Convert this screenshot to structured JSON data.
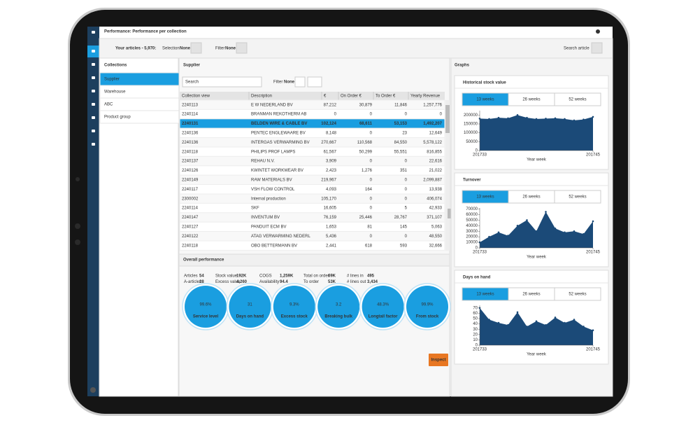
{
  "header": {
    "title": "Performance: Performance per collection"
  },
  "toolbar": {
    "articles": "Your articles - 5,970:",
    "selection_label": "Selection",
    "selection_value": "None",
    "filter_label": "Filter",
    "filter_value": "None",
    "search": "Search article"
  },
  "collections": {
    "title": "Collections",
    "items": [
      "Supplier",
      "Warehouse",
      "ABC",
      "Product group"
    ]
  },
  "supplier": {
    "title": "Supplier",
    "search": "Search",
    "filter_label": "Filter",
    "filter_value": "None",
    "columns": [
      "Collection view",
      "Description",
      "€",
      "On Order €",
      "To Order €",
      "Yearly Revenue"
    ],
    "rows": [
      [
        "2240113",
        "E W NEDERLAND BV",
        "87,212",
        "30,879",
        "11,846",
        "1,257,776"
      ],
      [
        "2240114",
        "BRANMAN REKOTHERM AB",
        "0",
        "0",
        "0",
        "0"
      ],
      [
        "2240131",
        "BELDEN WIRE & CABLE BV",
        "102,124",
        "68,611",
        "53,153",
        "1,492,207"
      ],
      [
        "2240136",
        "PENTEC ENGLEWAARE BV",
        "8,148",
        "0",
        "23",
        "12,649"
      ],
      [
        "2240136",
        "INTERGAS VERWARMING BV",
        "270,667",
        "110,568",
        "84,550",
        "5,578,122"
      ],
      [
        "2240118",
        "PHILIPS PROF LAMPS",
        "61,567",
        "50,299",
        "55,551",
        "816,855"
      ],
      [
        "2240137",
        "REHAU N.V.",
        "3,909",
        "0",
        "0",
        "22,616"
      ],
      [
        "2240126",
        "KWINTET WORKWEAR BV",
        "2,423",
        "1,276",
        "351",
        "21,022"
      ],
      [
        "2240149",
        "RAW MATERIALS BV",
        "219,967",
        "0",
        "0",
        "2,099,887"
      ],
      [
        "2240117",
        "VSH FLOW CONTROL",
        "4,093",
        "164",
        "0",
        "13,938"
      ],
      [
        "2300002",
        "Internal production",
        "105,170",
        "0",
        "0",
        "406,074"
      ],
      [
        "2240114",
        "SKF",
        "16,605",
        "0",
        "5",
        "42,933"
      ],
      [
        "2240147",
        "INVENTUM BV",
        "76,159",
        "25,446",
        "28,767",
        "371,107"
      ],
      [
        "2240127",
        "PANDUIT ECM BV",
        "1,653",
        "81",
        "145",
        "5,063"
      ],
      [
        "2240122",
        "ATAG VERWARMING NEDERL",
        "5,436",
        "0",
        "0",
        "48,550"
      ],
      [
        "2240118",
        "OBO BETTERMANN BV",
        "2,441",
        "618",
        "593",
        "32,666"
      ]
    ]
  },
  "overall": {
    "title": "Overall performance",
    "stats": [
      [
        [
          "Articles",
          "54"
        ],
        [
          "Stock value",
          "192K"
        ],
        [
          "COGS",
          "1,259K"
        ],
        [
          "Total on order",
          "69K"
        ],
        [
          "# lines in",
          "495"
        ]
      ],
      [
        [
          "A-articles",
          "28"
        ],
        [
          "Excess value",
          "4,260"
        ],
        [
          "Availability",
          "94.4"
        ],
        [
          "To order",
          "53K"
        ],
        [
          "# lines out",
          "3,434"
        ]
      ]
    ],
    "kpis": [
      {
        "value": "99.6%",
        "label": "Service level"
      },
      {
        "value": "31",
        "label": "Days on hand"
      },
      {
        "value": "9.3%",
        "label": "Excess stock"
      },
      {
        "value": "3.2",
        "label": "Breaking bulk"
      },
      {
        "value": "48.3%",
        "label": "Longtail factor"
      },
      {
        "value": "99.9%",
        "label": "From stock"
      }
    ]
  },
  "inspect": "Inspect",
  "graphs": {
    "title": "Graphs",
    "tabs": [
      "13 weeks",
      "26 weeks",
      "52 weeks"
    ]
  },
  "chart_data": [
    {
      "type": "area",
      "title": "Historical stock value",
      "xlabel": "Year week",
      "color": "#1b4a78",
      "x": [
        201733,
        201734,
        201735,
        201736,
        201737,
        201738,
        201739,
        201740,
        201741,
        201742,
        201743,
        201744,
        201745
      ],
      "values": [
        180000,
        178000,
        185000,
        182000,
        200000,
        185000,
        178000,
        180000,
        182000,
        178000,
        170000,
        175000,
        190000
      ],
      "xlim": [
        201733,
        201745
      ],
      "xticks": [
        201733,
        201745
      ],
      "ylim": [
        0,
        225000
      ],
      "yticks": [
        0,
        50000,
        100000,
        150000,
        200000
      ]
    },
    {
      "type": "area",
      "title": "Turnover",
      "xlabel": "Year week",
      "color": "#1b4a78",
      "x": [
        201733,
        201734,
        201735,
        201736,
        201737,
        201738,
        201739,
        201740,
        201741,
        201742,
        201743,
        201744,
        201745
      ],
      "values": [
        10000,
        20000,
        28000,
        22000,
        40000,
        50000,
        30000,
        65000,
        35000,
        28000,
        30000,
        25000,
        48000
      ],
      "xlim": [
        201733,
        201745
      ],
      "xticks": [
        201733,
        201745
      ],
      "ylim": [
        0,
        72000
      ],
      "yticks": [
        0,
        10000,
        20000,
        30000,
        40000,
        50000,
        60000,
        70000
      ]
    },
    {
      "type": "area",
      "title": "Days on hand",
      "xlabel": "Year week",
      "color": "#1b4a78",
      "x": [
        201733,
        201734,
        201735,
        201736,
        201737,
        201738,
        201739,
        201740,
        201741,
        201742,
        201743,
        201744,
        201745
      ],
      "values": [
        70,
        48,
        42,
        38,
        62,
        35,
        45,
        38,
        52,
        42,
        48,
        35,
        28
      ],
      "xlim": [
        201733,
        201745
      ],
      "xticks": [
        201733,
        201745
      ],
      "ylim": [
        0,
        75
      ],
      "yticks": [
        0,
        10,
        20,
        30,
        40,
        50,
        60,
        70
      ]
    }
  ]
}
